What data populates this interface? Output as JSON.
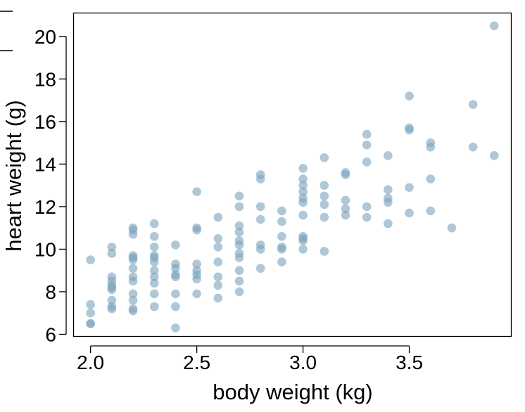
{
  "chart_data": {
    "type": "scatter",
    "title": "",
    "xlabel": "body weight (kg)",
    "ylabel": "heart weight (g)",
    "xlim": [
      1.92,
      3.98
    ],
    "ylim": [
      5.9,
      21.1
    ],
    "x_ticks": [
      2.0,
      2.5,
      3.0,
      3.5
    ],
    "x_tick_labels": [
      "2.0",
      "2.5",
      "3.0",
      "3.5"
    ],
    "y_ticks": [
      6,
      8,
      10,
      12,
      14,
      16,
      18,
      20
    ],
    "y_tick_labels": [
      "6",
      "8",
      "10",
      "12",
      "14",
      "16",
      "18",
      "20"
    ],
    "grid": false,
    "point_color": "#7ea4bf",
    "series": [
      {
        "points": [
          [
            2.0,
            9.5
          ],
          [
            2.0,
            7.4
          ],
          [
            2.0,
            7.0
          ],
          [
            2.0,
            6.5
          ],
          [
            2.0,
            6.5
          ],
          [
            2.1,
            10.1
          ],
          [
            2.1,
            9.8
          ],
          [
            2.1,
            8.7
          ],
          [
            2.1,
            8.5
          ],
          [
            2.1,
            8.3
          ],
          [
            2.1,
            8.2
          ],
          [
            2.1,
            8.1
          ],
          [
            2.1,
            7.6
          ],
          [
            2.1,
            7.3
          ],
          [
            2.1,
            7.2
          ],
          [
            2.2,
            11.0
          ],
          [
            2.2,
            10.9
          ],
          [
            2.2,
            10.7
          ],
          [
            2.2,
            9.7
          ],
          [
            2.2,
            9.6
          ],
          [
            2.2,
            9.5
          ],
          [
            2.2,
            9.1
          ],
          [
            2.2,
            8.7
          ],
          [
            2.2,
            8.5
          ],
          [
            2.2,
            7.9
          ],
          [
            2.2,
            7.6
          ],
          [
            2.2,
            7.2
          ],
          [
            2.2,
            7.1
          ],
          [
            2.3,
            11.2
          ],
          [
            2.3,
            10.6
          ],
          [
            2.3,
            10.1
          ],
          [
            2.3,
            9.7
          ],
          [
            2.3,
            9.6
          ],
          [
            2.3,
            9.4
          ],
          [
            2.3,
            9.0
          ],
          [
            2.3,
            8.7
          ],
          [
            2.3,
            8.4
          ],
          [
            2.3,
            7.9
          ],
          [
            2.3,
            7.3
          ],
          [
            2.4,
            10.2
          ],
          [
            2.4,
            9.3
          ],
          [
            2.4,
            9.1
          ],
          [
            2.4,
            8.8
          ],
          [
            2.4,
            8.7
          ],
          [
            2.4,
            7.9
          ],
          [
            2.4,
            7.3
          ],
          [
            2.4,
            6.3
          ],
          [
            2.5,
            12.7
          ],
          [
            2.5,
            11.0
          ],
          [
            2.5,
            10.9
          ],
          [
            2.5,
            9.3
          ],
          [
            2.5,
            9.0
          ],
          [
            2.5,
            8.8
          ],
          [
            2.5,
            8.6
          ],
          [
            2.5,
            7.9
          ],
          [
            2.6,
            11.5
          ],
          [
            2.6,
            10.5
          ],
          [
            2.6,
            10.1
          ],
          [
            2.6,
            9.4
          ],
          [
            2.6,
            8.7
          ],
          [
            2.6,
            8.3
          ],
          [
            2.6,
            7.7
          ],
          [
            2.7,
            12.5
          ],
          [
            2.7,
            12.0
          ],
          [
            2.7,
            11.1
          ],
          [
            2.7,
            10.8
          ],
          [
            2.7,
            10.4
          ],
          [
            2.7,
            10.2
          ],
          [
            2.7,
            9.8
          ],
          [
            2.7,
            9.6
          ],
          [
            2.7,
            9.0
          ],
          [
            2.7,
            8.5
          ],
          [
            2.7,
            8.0
          ],
          [
            2.8,
            13.5
          ],
          [
            2.8,
            13.3
          ],
          [
            2.8,
            12.0
          ],
          [
            2.8,
            11.4
          ],
          [
            2.8,
            10.2
          ],
          [
            2.8,
            10.0
          ],
          [
            2.8,
            9.1
          ],
          [
            2.9,
            11.8
          ],
          [
            2.9,
            11.3
          ],
          [
            2.9,
            10.6
          ],
          [
            2.9,
            10.1
          ],
          [
            2.9,
            10.0
          ],
          [
            2.9,
            9.4
          ],
          [
            3.0,
            13.8
          ],
          [
            3.0,
            13.3
          ],
          [
            3.0,
            13.0
          ],
          [
            3.0,
            12.7
          ],
          [
            3.0,
            12.4
          ],
          [
            3.0,
            12.2
          ],
          [
            3.0,
            11.6
          ],
          [
            3.0,
            10.6
          ],
          [
            3.0,
            10.5
          ],
          [
            3.0,
            10.4
          ],
          [
            3.0,
            10.0
          ],
          [
            3.1,
            14.3
          ],
          [
            3.1,
            13.0
          ],
          [
            3.1,
            12.5
          ],
          [
            3.1,
            12.1
          ],
          [
            3.1,
            11.5
          ],
          [
            3.1,
            9.9
          ],
          [
            3.2,
            13.6
          ],
          [
            3.2,
            13.5
          ],
          [
            3.2,
            12.3
          ],
          [
            3.2,
            11.9
          ],
          [
            3.2,
            11.6
          ],
          [
            3.3,
            15.4
          ],
          [
            3.3,
            14.9
          ],
          [
            3.3,
            14.1
          ],
          [
            3.3,
            12.0
          ],
          [
            3.3,
            11.5
          ],
          [
            3.4,
            14.4
          ],
          [
            3.4,
            12.8
          ],
          [
            3.4,
            12.4
          ],
          [
            3.4,
            12.2
          ],
          [
            3.4,
            11.2
          ],
          [
            3.5,
            17.2
          ],
          [
            3.5,
            15.7
          ],
          [
            3.5,
            15.6
          ],
          [
            3.5,
            12.9
          ],
          [
            3.5,
            11.7
          ],
          [
            3.6,
            15.0
          ],
          [
            3.6,
            14.8
          ],
          [
            3.6,
            13.3
          ],
          [
            3.6,
            11.8
          ],
          [
            3.7,
            11.0
          ],
          [
            3.8,
            16.8
          ],
          [
            3.8,
            14.8
          ],
          [
            3.9,
            20.5
          ],
          [
            3.9,
            14.4
          ]
        ]
      }
    ]
  }
}
